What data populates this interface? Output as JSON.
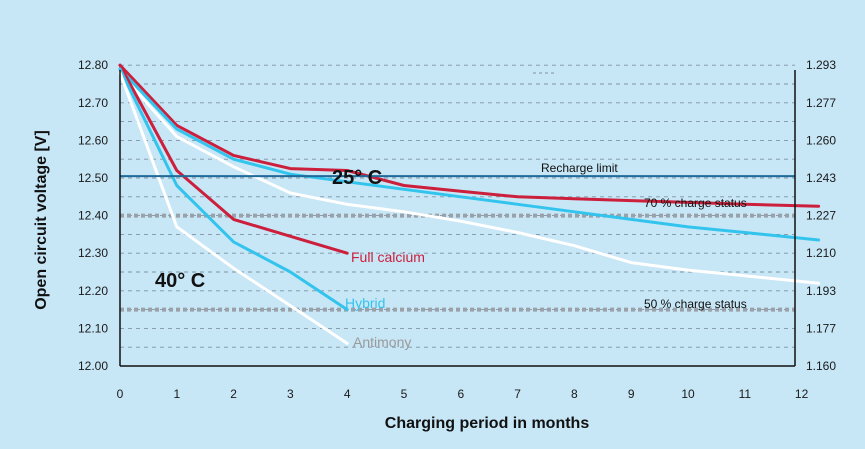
{
  "chart_data": {
    "type": "line",
    "xlabel": "Charging period in months",
    "ylabel": "Open circuit voltage [V]",
    "xlim": [
      0,
      12.3
    ],
    "ylim": [
      12.0,
      12.83
    ],
    "x_ticks": [
      "0",
      "1",
      "2",
      "3",
      "4",
      "5",
      "6",
      "7",
      "8",
      "9",
      "10",
      "11",
      "12"
    ],
    "y_ticks_left": [
      "12.00",
      "12.10",
      "12.20",
      "12.30",
      "12.40",
      "12.50",
      "12.60",
      "12.70",
      "12.80"
    ],
    "y_ticks_right": [
      "1.160",
      "1.177",
      "1.193",
      "1.210",
      "1.227",
      "1.243",
      "1.260",
      "1.277",
      "1.293"
    ],
    "grid": "dashed horizontal",
    "annotations": {
      "recharge_limit": {
        "text": "Recharge limit",
        "y": 12.505
      },
      "charge_70": {
        "text": "70 % charge status",
        "y": 12.4
      },
      "charge_50": {
        "text": "50 % charge status",
        "y": 12.15
      },
      "temp_25": "25° C",
      "temp_40": "40° C"
    },
    "series": [
      {
        "name": "Full calcium",
        "condition": "25° C",
        "color": "#cc1f3c",
        "points": [
          [
            0,
            12.8
          ],
          [
            1,
            12.64
          ],
          [
            2,
            12.56
          ],
          [
            3,
            12.525
          ],
          [
            4,
            12.52
          ],
          [
            5,
            12.48
          ],
          [
            6,
            12.465
          ],
          [
            7,
            12.45
          ],
          [
            8,
            12.445
          ],
          [
            9,
            12.44
          ],
          [
            10,
            12.435
          ],
          [
            11,
            12.43
          ],
          [
            12.3,
            12.425
          ]
        ]
      },
      {
        "name": "Hybrid",
        "condition": "25° C",
        "color": "#33c4ee",
        "points": [
          [
            0,
            12.79
          ],
          [
            1,
            12.63
          ],
          [
            2,
            12.55
          ],
          [
            3,
            12.51
          ],
          [
            4,
            12.49
          ],
          [
            5,
            12.47
          ],
          [
            6,
            12.45
          ],
          [
            7,
            12.43
          ],
          [
            8,
            12.41
          ],
          [
            9,
            12.39
          ],
          [
            10,
            12.37
          ],
          [
            11,
            12.355
          ],
          [
            12.3,
            12.335
          ]
        ]
      },
      {
        "name": "Antimony",
        "condition": "25° C",
        "color": "#ffffff",
        "points": [
          [
            0,
            12.78
          ],
          [
            1,
            12.61
          ],
          [
            2,
            12.53
          ],
          [
            3,
            12.46
          ],
          [
            4,
            12.43
          ],
          [
            5,
            12.41
          ],
          [
            6,
            12.385
          ],
          [
            7,
            12.355
          ],
          [
            8,
            12.32
          ],
          [
            9,
            12.275
          ],
          [
            10,
            12.255
          ],
          [
            11,
            12.24
          ],
          [
            12.3,
            12.22
          ]
        ]
      },
      {
        "name": "Full calcium",
        "condition": "40° C",
        "color": "#cc1f3c",
        "labeled": true,
        "points": [
          [
            0,
            12.8
          ],
          [
            1,
            12.52
          ],
          [
            2,
            12.39
          ],
          [
            3,
            12.345
          ],
          [
            4,
            12.3
          ]
        ]
      },
      {
        "name": "Hybrid",
        "condition": "40° C",
        "color": "#33c4ee",
        "labeled": true,
        "points": [
          [
            0,
            12.79
          ],
          [
            1,
            12.48
          ],
          [
            2,
            12.33
          ],
          [
            3,
            12.25
          ],
          [
            4,
            12.15
          ]
        ]
      },
      {
        "name": "Antimony",
        "condition": "40° C",
        "color": "#ffffff",
        "labeled": true,
        "points": [
          [
            0,
            12.78
          ],
          [
            1,
            12.37
          ],
          [
            2,
            12.26
          ],
          [
            3,
            12.16
          ],
          [
            4,
            12.06
          ]
        ]
      }
    ]
  }
}
